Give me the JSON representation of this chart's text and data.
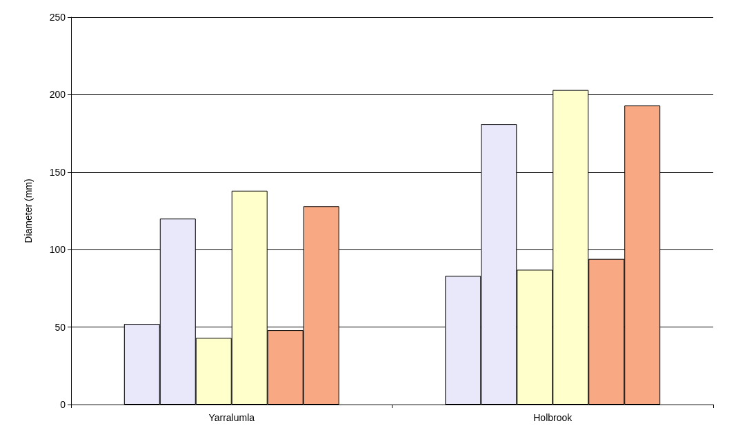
{
  "chart_data": {
    "type": "bar",
    "ylabel": "Diameter (mm)",
    "categories": [
      "Yarralumla",
      "Holbrook"
    ],
    "series": [
      {
        "color": "#e8e8fa",
        "values": [
          52,
          83
        ]
      },
      {
        "color": "#e8e8fa",
        "values": [
          120,
          181
        ]
      },
      {
        "color": "#ffffcc",
        "values": [
          43,
          87
        ]
      },
      {
        "color": "#ffffcc",
        "values": [
          138,
          203
        ]
      },
      {
        "color": "#f8a882",
        "values": [
          48,
          94
        ]
      },
      {
        "color": "#f8a882",
        "values": [
          128,
          193
        ]
      }
    ],
    "ylim": [
      0,
      250
    ],
    "yticks": [
      0,
      50,
      100,
      150,
      200,
      250
    ],
    "grid": "y"
  }
}
